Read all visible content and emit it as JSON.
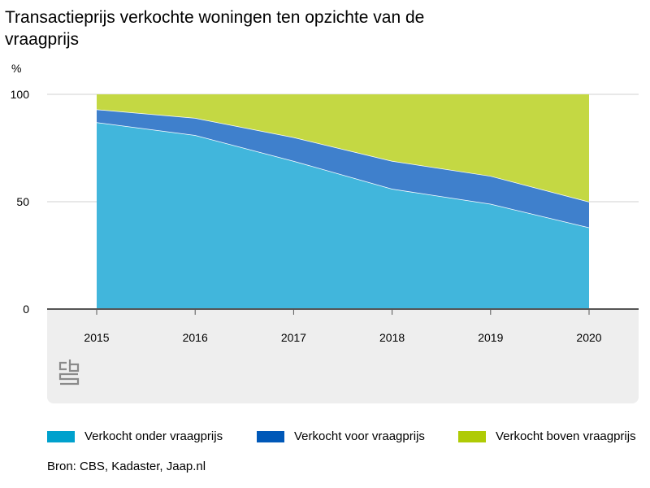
{
  "title": "Transactieprijs verkochte woningen ten opzichte van de vraagprijs",
  "source": "Bron: CBS, Kadaster, Jaap.nl",
  "logo_icon": "cbs-logo-icon",
  "colors": {
    "onder": "#41b6dc",
    "voor": "#3f80cc",
    "boven": "#c4d843",
    "legend_onder": "#00a1cd",
    "legend_voor": "#0058b8",
    "legend_boven": "#afcb05"
  },
  "chart_data": {
    "type": "area",
    "stacked": true,
    "ylabel": "%",
    "ylim": [
      0,
      100
    ],
    "yticks": [
      0,
      50,
      100
    ],
    "categories": [
      "2015",
      "2016",
      "2017",
      "2018",
      "2019",
      "2020"
    ],
    "series": [
      {
        "name": "Verkocht onder vraagprijs",
        "values": [
          87,
          81,
          69,
          56,
          49,
          38
        ]
      },
      {
        "name": "Verkocht voor vraagprijs",
        "values": [
          6,
          8,
          11,
          13,
          13,
          12
        ]
      },
      {
        "name": "Verkocht boven vraagprijs",
        "values": [
          7,
          11,
          20,
          31,
          38,
          50
        ]
      }
    ],
    "grid": true,
    "legend_position": "bottom"
  }
}
